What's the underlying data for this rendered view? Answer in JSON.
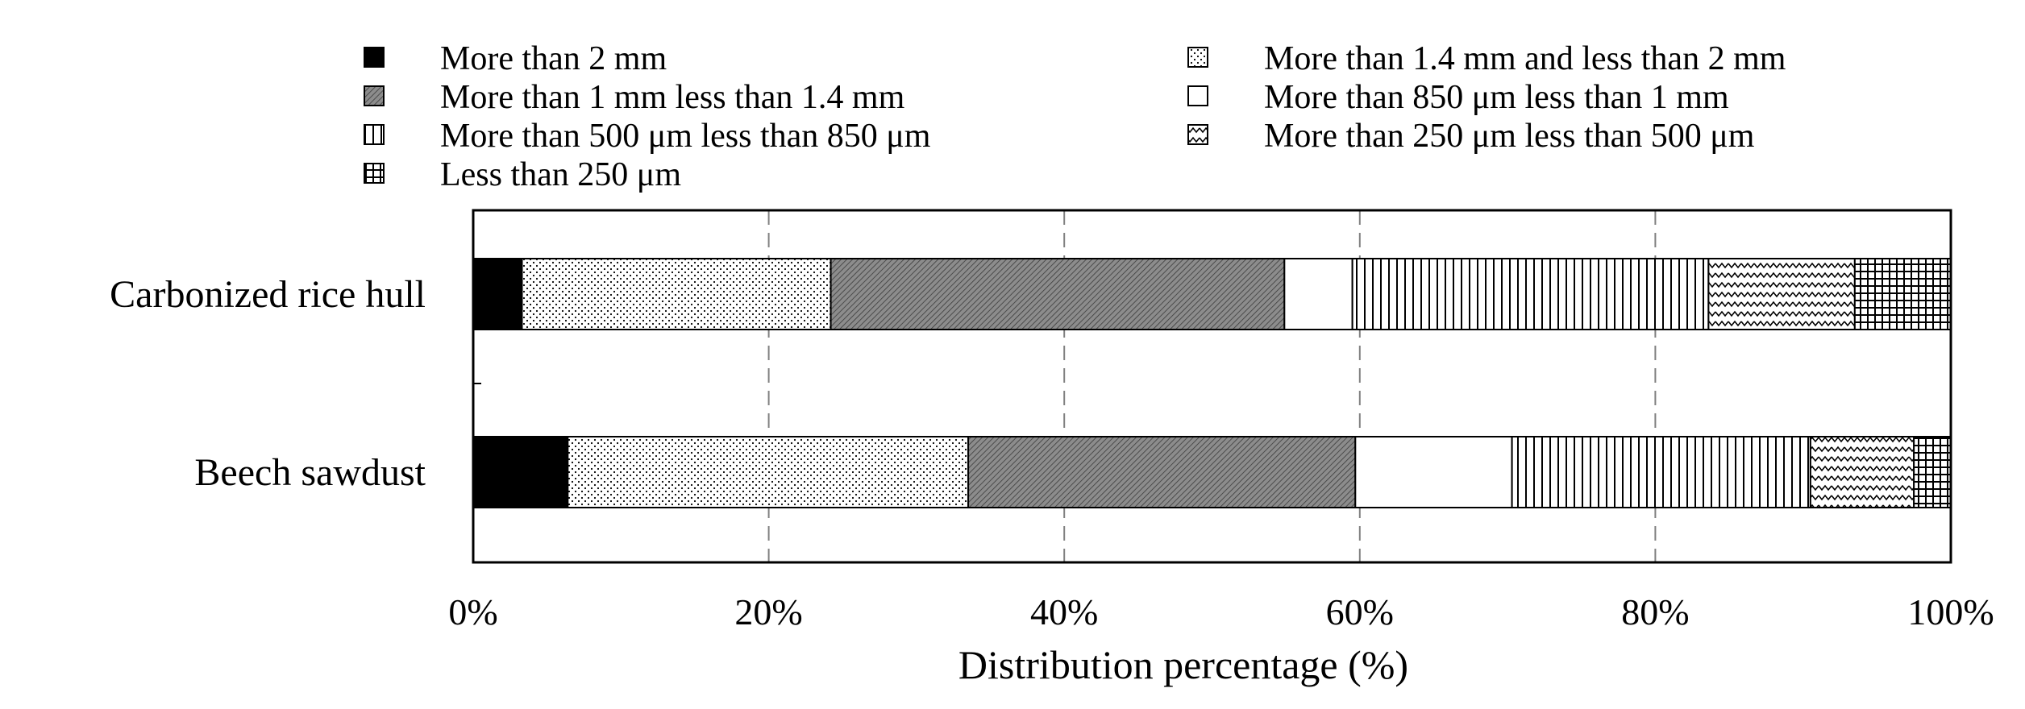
{
  "chart_data": {
    "type": "bar",
    "orientation": "horizontal",
    "stacked": true,
    "title": "",
    "xlabel": "Distribution percentage (%)",
    "ylabel": "",
    "xlim": [
      0,
      100
    ],
    "xticks": [
      0,
      20,
      40,
      60,
      80,
      100
    ],
    "xtick_labels": [
      "0%",
      "20%",
      "40%",
      "60%",
      "80%",
      "100%"
    ],
    "grid": "vertical dashed",
    "legend_position": "top",
    "categories": [
      "Carbonized rice hull",
      "Beech sawdust"
    ],
    "series": [
      {
        "name": "More than 2 mm",
        "pattern": "solid-black",
        "values": [
          3.3,
          6.4
        ]
      },
      {
        "name": "More than 1.4 mm and less than 2 mm",
        "pattern": "dots",
        "values": [
          20.9,
          27.1
        ]
      },
      {
        "name": "More than 1 mm less than 1.4 mm",
        "pattern": "dark-hatch",
        "values": [
          30.7,
          26.2
        ]
      },
      {
        "name": "More than 850 μm less than 1 mm",
        "pattern": "white",
        "values": [
          4.6,
          10.6
        ]
      },
      {
        "name": "More than 500 μm less than 850 μm",
        "pattern": "vertical-lines",
        "values": [
          24.1,
          20.2
        ]
      },
      {
        "name": "More than 250 μm less than 500 μm",
        "pattern": "zigzag",
        "values": [
          9.9,
          7.0
        ]
      },
      {
        "name": "Less than 250 μm",
        "pattern": "grid",
        "values": [
          6.5,
          2.5
        ]
      }
    ]
  },
  "colors": {
    "black": "#000000",
    "dark_gray": "#8c8c8c",
    "white": "#ffffff",
    "grid": "#808080"
  }
}
